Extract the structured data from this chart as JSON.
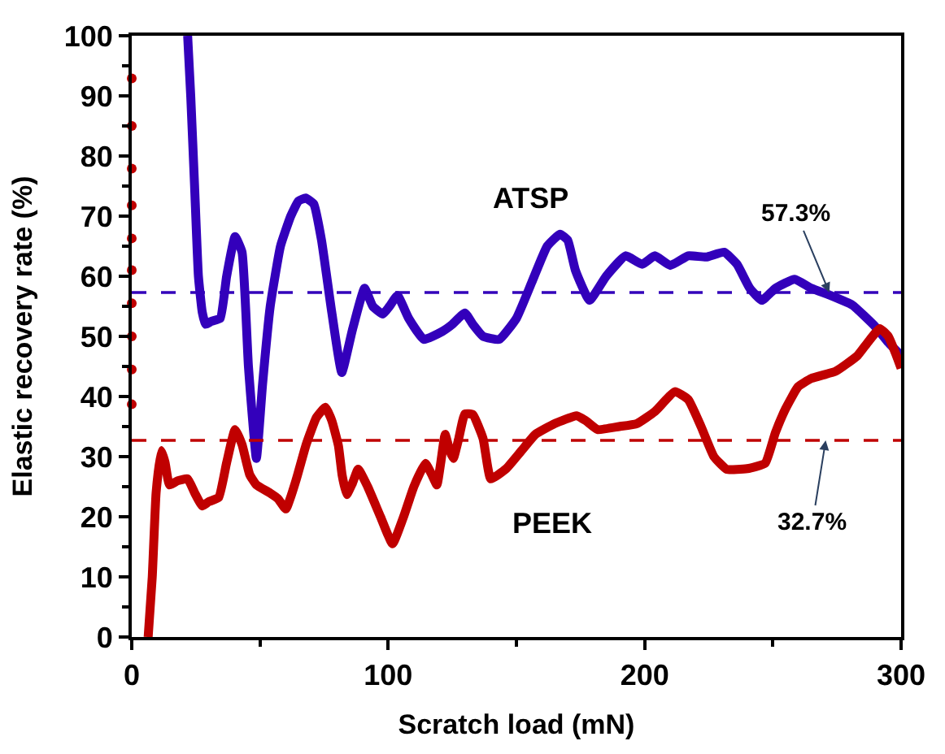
{
  "chart_data": {
    "type": "line",
    "xlabel": "Scratch load (mN)",
    "ylabel": "Elastic recovery rate (%)",
    "xlim": [
      0,
      300
    ],
    "xticks": [
      0,
      {
        "value": 50,
        "label": null
      },
      100,
      {
        "value": 150,
        "label": null
      },
      200,
      {
        "value": 250,
        "label": null
      },
      300
    ],
    "ylim": [
      0,
      100
    ],
    "yticks": [
      0,
      {
        "value": 5,
        "label": null
      },
      10,
      {
        "value": 15,
        "label": null
      },
      20,
      {
        "value": 25,
        "label": null
      },
      30,
      {
        "value": 35,
        "label": null
      },
      40,
      {
        "value": 45,
        "label": null
      },
      50,
      {
        "value": 55,
        "label": null
      },
      60,
      {
        "value": 65,
        "label": null
      },
      70,
      {
        "value": 75,
        "label": null
      },
      80,
      {
        "value": 85,
        "label": null
      },
      90,
      {
        "value": 95,
        "label": null
      },
      100
    ],
    "marker": "none",
    "line_style": "solid",
    "series": [
      {
        "color": "#3300bb",
        "x": [
          21.8,
          23,
          24.5,
          26,
          27.5,
          28.8,
          31,
          34.5,
          37,
          40.3,
          43,
          45.5,
          48.6,
          51,
          54,
          58,
          62,
          65,
          67.8,
          71,
          74,
          78,
          81.9,
          86,
          90.8,
          94,
          97.9,
          100.5,
          103.6,
          108,
          113.9,
          121,
          125,
          129.9,
          133,
          137,
          143.3,
          150,
          156,
          162,
          167,
          170,
          173,
          178.5,
          185,
          192.6,
          199,
          204,
          210,
          217,
          224,
          231,
          236,
          241,
          245.7,
          251,
          258.5,
          265,
          272.5,
          281,
          290,
          295,
          300
        ],
        "values": [
          100,
          90,
          75,
          60,
          54,
          52,
          52.5,
          53,
          60,
          66.6,
          64,
          45,
          29.7,
          42,
          55,
          65,
          70,
          72.5,
          73,
          72,
          66,
          54,
          44,
          51,
          58,
          55,
          53.7,
          55,
          56.8,
          53,
          49.5,
          50.8,
          52,
          53.9,
          52,
          50,
          49.5,
          53,
          59,
          65,
          67,
          66,
          61,
          56,
          60,
          63.4,
          62,
          63.4,
          61.8,
          63.4,
          63.2,
          64,
          62,
          58,
          56,
          58,
          59.5,
          58,
          56.8,
          55.2,
          51.6,
          49,
          46.8
        ]
      },
      {
        "color": "#c00000",
        "x": [
          6.4,
          8,
          9.5,
          11.5,
          13,
          14.7,
          18,
          21.8,
          24.5,
          27.5,
          30,
          33.9,
          37,
          40.3,
          43,
          46,
          48.6,
          53.7,
          57,
          60.1,
          64,
          68,
          72,
          75.5,
          78,
          80.6,
          82,
          83.8,
          86,
          88.3,
          92,
          97,
          101.7,
          106,
          110,
          114.5,
          117,
          119,
          120.5,
          122.2,
          124,
          125.4,
          127.5,
          129.9,
          133,
          137,
          140,
          146,
          152,
          157.4,
          165,
          173.4,
          177,
          181.7,
          190,
          197,
          204,
          211.8,
          217,
          222,
          227,
          232,
          240,
          247,
          251,
          255,
          259.8,
          265,
          274.5,
          283,
          287,
          291.7,
          295,
          298,
          300
        ],
        "values": [
          0,
          10,
          24,
          31,
          29,
          25.3,
          26,
          26.3,
          24,
          21.8,
          22.5,
          23.2,
          29,
          34.5,
          32,
          27,
          25.3,
          24,
          23,
          21.3,
          26,
          32,
          36.5,
          38.2,
          36,
          31.8,
          27,
          23.7,
          25.5,
          27.9,
          25,
          20,
          15.5,
          20,
          25,
          28.9,
          27,
          25.3,
          29,
          33.7,
          31,
          29.7,
          33,
          37.1,
          37,
          33,
          26.3,
          28,
          31,
          33.7,
          35.5,
          36.8,
          36,
          34.5,
          35,
          35.5,
          37.5,
          40.8,
          39.5,
          35,
          30,
          27.9,
          28,
          28.9,
          34,
          38,
          41.6,
          43,
          44.2,
          46.8,
          49,
          51.3,
          50,
          47,
          44.7
        ]
      },
      {
        "type": "scatter",
        "marker": "circle",
        "color": "#c00000",
        "x": [
          0,
          0,
          0,
          0,
          0,
          0,
          0,
          0,
          0,
          0
        ],
        "values": [
          92.9,
          85,
          77.9,
          71.8,
          66.3,
          61,
          55.5,
          50,
          44.5,
          38.7
        ]
      }
    ],
    "ref_lines": [
      {
        "axis": "y",
        "value": 57.3,
        "color": "#3300bb",
        "line_style": "dashed"
      },
      {
        "axis": "y",
        "value": 32.7,
        "color": "#c00000",
        "line_style": "dashed"
      }
    ],
    "annotations": [
      "ATSP",
      "PEEK",
      {
        "text": "57.3%",
        "x": 272,
        "y": 57.3
      },
      {
        "text": "32.7%",
        "x": 270.6,
        "y": 32.7
      }
    ]
  }
}
